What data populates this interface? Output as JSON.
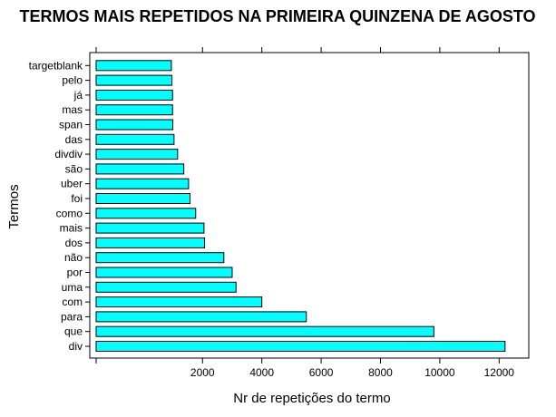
{
  "chart_data": {
    "type": "bar",
    "orientation": "horizontal",
    "title": "TERMOS MAIS REPETIDOS NA PRIMEIRA QUINZENA DE AGOSTO",
    "xlabel": "Nr de repetições do termo",
    "ylabel": "Termos",
    "categories": [
      "div",
      "que",
      "para",
      "com",
      "uma",
      "por",
      "não",
      "dos",
      "mais",
      "como",
      "foi",
      "uber",
      "são",
      "divdiv",
      "das",
      "span",
      "mas",
      "já",
      "pelo",
      "targetblank"
    ],
    "values": [
      12200,
      9800,
      5500,
      4000,
      3130,
      3000,
      2720,
      2070,
      2050,
      1770,
      1580,
      1530,
      1370,
      1160,
      1040,
      1000,
      990,
      990,
      970,
      950
    ],
    "xticks": [
      2000,
      4000,
      6000,
      8000,
      10000,
      12000
    ],
    "xlim": [
      -1800,
      13000
    ],
    "bar_color": "#00ffff",
    "bar_edge_color": "#000000",
    "grid": false
  }
}
